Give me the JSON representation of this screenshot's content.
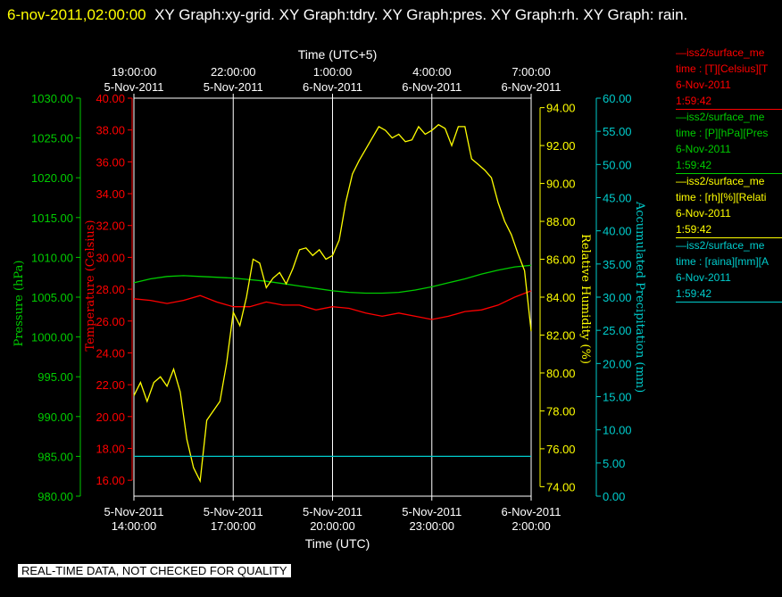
{
  "header": {
    "timestamp": "6-nov-2011,02:00:00",
    "graphs": "XY Graph:xy-grid.  XY Graph:tdry.  XY Graph:pres.  XY Graph:rh.  XY Graph: rain."
  },
  "colors": {
    "pressure": "#00cc00",
    "temperature": "#ff0000",
    "humidity": "#ffff00",
    "precipitation": "#00cccc",
    "grid": "#ffffff",
    "background": "#000000"
  },
  "legend": [
    {
      "source": "—iss2/surface_me",
      "var": "time : [T][Celsius][T",
      "date": "6-Nov-2011",
      "time": "1:59:42",
      "color": "#ff0000"
    },
    {
      "source": "—iss2/surface_me",
      "var": "time : [P][hPa][Pres",
      "date": "6-Nov-2011",
      "time": "1:59:42",
      "color": "#00cc00"
    },
    {
      "source": "—iss2/surface_me",
      "var": "time : [rh][%][Relati",
      "date": "6-Nov-2011",
      "time": "1:59:42",
      "color": "#ffff00"
    },
    {
      "source": "—iss2/surface_me",
      "var": "time : [raina][mm][A",
      "date": "6-Nov-2011",
      "time": "1:59:42",
      "color": "#00cccc"
    }
  ],
  "disclaimer": "REAL-TIME DATA, NOT CHECKED FOR QUALITY",
  "chart_data": {
    "type": "line",
    "x_unit": "hours since 5-Nov-2011 14:00 UTC",
    "xlim": [
      0,
      12
    ],
    "top_axis": {
      "label": "Time (UTC+5)",
      "ticks": [
        {
          "x": 0,
          "time": "19:00:00",
          "date": "5-Nov-2011"
        },
        {
          "x": 3,
          "time": "22:00:00",
          "date": "5-Nov-2011"
        },
        {
          "x": 6,
          "time": "1:00:00",
          "date": "6-Nov-2011"
        },
        {
          "x": 9,
          "time": "4:00:00",
          "date": "6-Nov-2011"
        },
        {
          "x": 12,
          "time": "7:00:00",
          "date": "6-Nov-2011"
        }
      ]
    },
    "bottom_axis": {
      "label": "Time (UTC)",
      "ticks": [
        {
          "x": 0,
          "date": "5-Nov-2011",
          "time": "14:00:00"
        },
        {
          "x": 3,
          "date": "5-Nov-2011",
          "time": "17:00:00"
        },
        {
          "x": 6,
          "date": "5-Nov-2011",
          "time": "20:00:00"
        },
        {
          "x": 9,
          "date": "5-Nov-2011",
          "time": "23:00:00"
        },
        {
          "x": 12,
          "date": "6-Nov-2011",
          "time": "2:00:00"
        }
      ]
    },
    "y_axes": {
      "pressure": {
        "label": "Pressure (hPa)",
        "ylim": [
          980,
          1030
        ],
        "ticks": [
          "980.00",
          "985.00",
          "990.00",
          "995.00",
          "1000.00",
          "1005.00",
          "1010.00",
          "1015.00",
          "1020.00",
          "1025.00",
          "1030.00"
        ]
      },
      "temperature": {
        "label": "Temperature (Celsius)",
        "ylim": [
          15,
          40
        ],
        "ticks": [
          "16.00",
          "18.00",
          "20.00",
          "22.00",
          "24.00",
          "26.00",
          "28.00",
          "30.00",
          "32.00",
          "34.00",
          "36.00",
          "38.00",
          "40.00"
        ]
      },
      "humidity": {
        "label": "Relative Humidity (%)",
        "ylim": [
          73.5,
          94.5
        ],
        "ticks": [
          "74.00",
          "76.00",
          "78.00",
          "80.00",
          "82.00",
          "84.00",
          "86.00",
          "88.00",
          "90.00",
          "92.00",
          "94.00"
        ]
      },
      "precipitation": {
        "label": "Accumulated Precipitation (mm)",
        "ylim": [
          0,
          60
        ],
        "ticks": [
          "0.00",
          "5.00",
          "10.00",
          "15.00",
          "20.00",
          "25.00",
          "30.00",
          "35.00",
          "40.00",
          "45.00",
          "50.00",
          "55.00",
          "60.00"
        ]
      }
    },
    "series": [
      {
        "name": "Pressure",
        "axis": "pressure",
        "color": "#00cc00",
        "x": [
          0,
          0.5,
          1,
          1.5,
          2,
          2.5,
          3,
          3.5,
          4,
          4.5,
          5,
          5.5,
          6,
          6.5,
          7,
          7.5,
          8,
          8.5,
          9,
          9.5,
          10,
          10.5,
          11,
          11.5,
          12
        ],
        "y": [
          1006.8,
          1007.3,
          1007.6,
          1007.7,
          1007.6,
          1007.5,
          1007.4,
          1007.2,
          1007.0,
          1006.7,
          1006.4,
          1006.1,
          1005.8,
          1005.6,
          1005.5,
          1005.5,
          1005.6,
          1005.9,
          1006.3,
          1006.8,
          1007.3,
          1007.9,
          1008.4,
          1008.8,
          1009.0
        ]
      },
      {
        "name": "Temperature",
        "axis": "temperature",
        "color": "#ff0000",
        "x": [
          0,
          0.5,
          1,
          1.5,
          2,
          2.5,
          3,
          3.5,
          4,
          4.5,
          5,
          5.5,
          6,
          6.5,
          7,
          7.5,
          8,
          8.5,
          9,
          9.5,
          10,
          10.5,
          11,
          11.5,
          12
        ],
        "y": [
          27.4,
          27.3,
          27.1,
          27.3,
          27.6,
          27.2,
          26.9,
          26.9,
          27.2,
          27.0,
          27.0,
          26.7,
          26.9,
          26.8,
          26.5,
          26.3,
          26.5,
          26.3,
          26.1,
          26.3,
          26.6,
          26.7,
          27.0,
          27.5,
          27.9
        ]
      },
      {
        "name": "Relative Humidity",
        "axis": "humidity",
        "color": "#ffff00",
        "x": [
          0,
          0.2,
          0.4,
          0.6,
          0.8,
          1.0,
          1.2,
          1.4,
          1.6,
          1.8,
          2.0,
          2.2,
          2.4,
          2.6,
          2.8,
          3.0,
          3.2,
          3.4,
          3.6,
          3.8,
          4.0,
          4.2,
          4.4,
          4.6,
          4.8,
          5.0,
          5.2,
          5.4,
          5.6,
          5.8,
          6.0,
          6.2,
          6.4,
          6.6,
          6.8,
          7.0,
          7.2,
          7.4,
          7.6,
          7.8,
          8.0,
          8.2,
          8.4,
          8.6,
          8.8,
          9.0,
          9.2,
          9.4,
          9.6,
          9.8,
          10.0,
          10.2,
          10.4,
          10.6,
          10.8,
          11.0,
          11.2,
          11.4,
          11.6,
          11.8,
          12.0
        ],
        "y": [
          78.8,
          79.5,
          78.5,
          79.5,
          79.8,
          79.3,
          80.2,
          79.0,
          76.5,
          75.0,
          74.3,
          77.5,
          78.0,
          78.5,
          80.5,
          83.2,
          82.5,
          84.0,
          86.0,
          85.8,
          84.5,
          85.0,
          85.3,
          84.7,
          85.5,
          86.5,
          86.6,
          86.2,
          86.5,
          86.0,
          86.2,
          87.0,
          89.0,
          90.5,
          91.2,
          91.8,
          92.4,
          93.0,
          92.8,
          92.4,
          92.6,
          92.2,
          92.3,
          93.0,
          92.6,
          92.8,
          93.1,
          92.9,
          92.0,
          93.0,
          93.0,
          91.3,
          91.0,
          90.7,
          90.3,
          89.0,
          88.0,
          87.3,
          86.3,
          85.4,
          82.2
        ]
      },
      {
        "name": "Accumulated Precipitation",
        "axis": "precipitation",
        "color": "#00cccc",
        "x": [
          0,
          3,
          6,
          9,
          12
        ],
        "y": [
          6.0,
          6.0,
          6.0,
          6.0,
          6.0
        ]
      }
    ]
  }
}
